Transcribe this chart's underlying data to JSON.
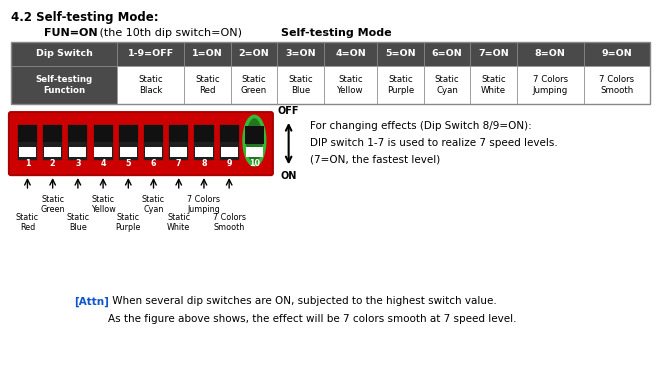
{
  "title": "4.2 Self-testing Mode:",
  "fun_on_bold": "FUN=ON",
  "fun_on_rest": " (the 10th dip switch=ON)",
  "self_test_mode_text": "Self-testing Mode",
  "table_headers": [
    "Dip Switch",
    "1-9=OFF",
    "1=ON",
    "2=ON",
    "3=ON",
    "4=ON",
    "5=ON",
    "6=ON",
    "7=ON",
    "8=ON",
    "9=ON"
  ],
  "table_row1": [
    "Self-testing\nFunction",
    "Static\nBlack",
    "Static\nRed",
    "Static\nGreen",
    "Static\nBlue",
    "Static\nYellow",
    "Static\nPurple",
    "Static\nCyan",
    "Static\nWhite",
    "7 Colors\nJumping",
    "7 Colors\nSmooth"
  ],
  "header_bg": "#4a4a4a",
  "header_fg": "#ffffff",
  "row_bg": "#ffffff",
  "row_label_bg": "#4a4a4a",
  "row_label_fg": "#ffffff",
  "dip_bg": "#cc0000",
  "dip_switch_dark": "#1a1a1a",
  "dip_white": "#ffffff",
  "switch_10_border": "#33bb33",
  "switch_10_bg": "#227722",
  "note_bold": "[Attn]",
  "note_line1": " When several dip switches are ON, subjected to the highest switch value.",
  "note_line2": "As the figure above shows, the effect will be 7 colors smooth at 7 speed level.",
  "info_line1": "For changing effects (Dip Switch 8/9=ON):",
  "info_line2": "DIP switch 1-7 is used to realize 7 speed levels.",
  "info_line3": "(7=ON, the fastest level)",
  "bg_color": "#ffffff",
  "table_border": "#888888",
  "col_widths_raw": [
    1.6,
    1.0,
    0.7,
    0.7,
    0.7,
    0.8,
    0.7,
    0.7,
    0.7,
    1.0,
    1.0
  ]
}
